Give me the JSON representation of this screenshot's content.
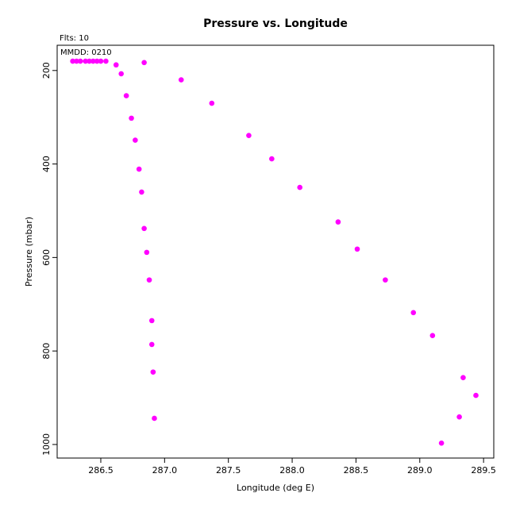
{
  "chart_data": {
    "type": "scatter",
    "title": "Pressure vs. Longitude",
    "annotations": [
      "Flts: 10",
      "MMDD: 0210"
    ],
    "x_label": "Longitude (deg E)",
    "y_label": "Pressure (mbar)",
    "x": [
      286.28,
      286.31,
      286.34,
      286.38,
      286.41,
      286.44,
      286.47,
      286.5,
      286.54,
      286.62,
      286.66,
      286.7,
      286.74,
      286.77,
      286.8,
      286.82,
      286.84,
      286.86,
      286.88,
      286.9,
      286.9,
      286.91,
      286.92,
      286.84,
      287.13,
      287.37,
      287.66,
      287.84,
      288.06,
      288.36,
      288.51,
      288.73,
      288.95,
      289.1,
      289.34,
      289.44,
      289.31,
      289.17
    ],
    "values": [
      180,
      180,
      180,
      180,
      180,
      180,
      180,
      180,
      180,
      188,
      207,
      254,
      302,
      349,
      411,
      460,
      538,
      589,
      648,
      735,
      786,
      845,
      944,
      183,
      220,
      270,
      339,
      389,
      450,
      524,
      582,
      648,
      718,
      767,
      857,
      895,
      941,
      997
    ],
    "color": "#ff00ff",
    "xlim": [
      286.158,
      289.58
    ],
    "xticks": [
      286.5,
      {
        "value": 287,
        "label": "287.0"
      },
      287.5,
      {
        "value": 288,
        "label": "288.0"
      },
      288.5,
      {
        "value": 289,
        "label": "289.0"
      },
      289.5
    ],
    "ylim": [
      1029,
      146
    ],
    "yticks": [
      200,
      400,
      600,
      800,
      1000
    ]
  }
}
